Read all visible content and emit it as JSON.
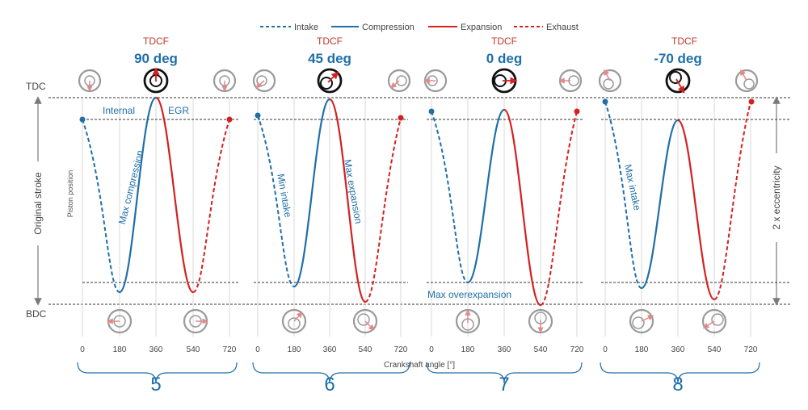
{
  "legend": {
    "intake": "Intake",
    "compression": "Compression",
    "expansion": "Expansion",
    "exhaust": "Exhaust"
  },
  "colors": {
    "blue": "#1f6fa8",
    "red": "#d42020",
    "axis_text": "#444444",
    "guide": "#222222",
    "grid": "#d9d9d9",
    "arrow_gray": "#7a7a7a",
    "icon_arrow": "#e08a8a"
  },
  "labels": {
    "tdc": "TDC",
    "bdc": "BDC",
    "original_stroke": "Original stroke",
    "eccentricity": "2 x eccentricity",
    "piston_position": "Piston position",
    "crankshaft_angle": "Crankshaft angle [°]"
  },
  "x_ticks": [
    "0",
    "180",
    "360",
    "540",
    "720"
  ],
  "panels": [
    {
      "number": "5",
      "tdcf_label": "TDCF",
      "tdcf_value": "90 deg",
      "annotations": [
        "Internal",
        "EGR",
        "Max compression"
      ]
    },
    {
      "number": "6",
      "tdcf_label": "TDCF",
      "tdcf_value": "45 deg",
      "annotations": [
        "Min intake",
        "Max expansion"
      ]
    },
    {
      "number": "7",
      "tdcf_label": "TDCF",
      "tdcf_value": "0 deg",
      "annotations": [
        "Max overexpansion"
      ]
    },
    {
      "number": "8",
      "tdcf_label": "TDCF",
      "tdcf_value": "-70 deg",
      "annotations": [
        "Max intake"
      ]
    }
  ]
}
